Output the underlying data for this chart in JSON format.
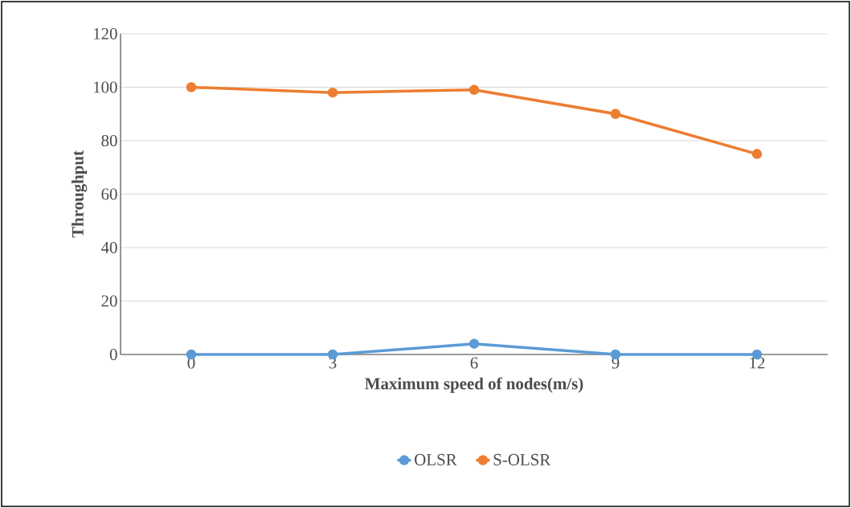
{
  "chart_data": {
    "type": "line",
    "xlabel": "Maximum speed of nodes(m/s)",
    "ylabel": "Throughput",
    "categories": [
      "0",
      "3",
      "6",
      "9",
      "12"
    ],
    "series": [
      {
        "name": "OLSR",
        "color": "#5b9bd5",
        "values": [
          0,
          0,
          4,
          0,
          0
        ]
      },
      {
        "name": "S-OLSR",
        "color": "#ed7d31",
        "values": [
          100,
          98,
          99,
          90,
          75
        ]
      }
    ],
    "ylim": [
      0,
      120
    ],
    "yticks": [
      0,
      20,
      40,
      60,
      80,
      100,
      120
    ],
    "grid": "y",
    "legend": "bottom",
    "marker": "circle"
  }
}
